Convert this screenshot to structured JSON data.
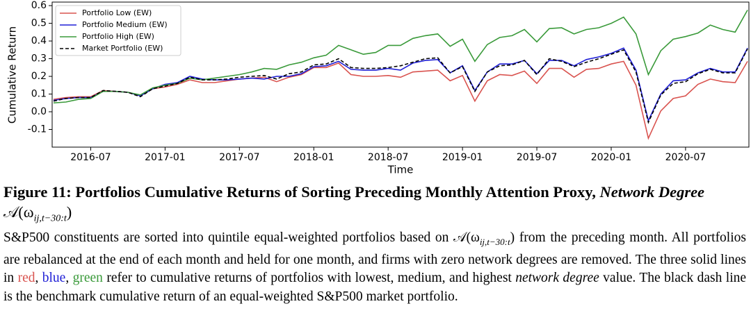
{
  "chart_data": {
    "type": "line",
    "ylabel": "Cumulative Return",
    "xlabel": "Time",
    "x": [
      "2016-04",
      "2016-05",
      "2016-06",
      "2016-07",
      "2016-08",
      "2016-09",
      "2016-10",
      "2016-11",
      "2016-12",
      "2017-01",
      "2017-02",
      "2017-03",
      "2017-04",
      "2017-05",
      "2017-06",
      "2017-07",
      "2017-08",
      "2017-09",
      "2017-10",
      "2017-11",
      "2017-12",
      "2018-01",
      "2018-02",
      "2018-03",
      "2018-04",
      "2018-05",
      "2018-06",
      "2018-07",
      "2018-08",
      "2018-09",
      "2018-10",
      "2018-11",
      "2018-12",
      "2019-01",
      "2019-02",
      "2019-03",
      "2019-04",
      "2019-05",
      "2019-06",
      "2019-07",
      "2019-08",
      "2019-09",
      "2019-10",
      "2019-11",
      "2019-12",
      "2020-01",
      "2020-02",
      "2020-03",
      "2020-04",
      "2020-05",
      "2020-06",
      "2020-07",
      "2020-08",
      "2020-09",
      "2020-10",
      "2020-11",
      "2020-12"
    ],
    "series": [
      {
        "name": "Portfolio Low (EW)",
        "color": "#d9534f",
        "dash": false,
        "values": [
          0.07,
          0.08,
          0.085,
          0.085,
          0.12,
          0.115,
          0.11,
          0.09,
          0.13,
          0.14,
          0.155,
          0.18,
          0.165,
          0.165,
          0.175,
          0.185,
          0.19,
          0.195,
          0.17,
          0.195,
          0.21,
          0.25,
          0.25,
          0.275,
          0.21,
          0.2,
          0.2,
          0.205,
          0.195,
          0.225,
          0.23,
          0.235,
          0.175,
          0.205,
          0.06,
          0.175,
          0.21,
          0.205,
          0.23,
          0.16,
          0.245,
          0.245,
          0.195,
          0.24,
          0.245,
          0.27,
          0.285,
          0.15,
          -0.15,
          0.005,
          0.075,
          0.09,
          0.155,
          0.185,
          0.17,
          0.165,
          0.285
        ]
      },
      {
        "name": "Portfolio Medium (EW)",
        "color": "#1f1fd6",
        "dash": false,
        "values": [
          0.065,
          0.075,
          0.08,
          0.08,
          0.115,
          0.115,
          0.11,
          0.09,
          0.13,
          0.155,
          0.165,
          0.2,
          0.185,
          0.18,
          0.18,
          0.185,
          0.19,
          0.185,
          0.2,
          0.2,
          0.215,
          0.255,
          0.26,
          0.285,
          0.24,
          0.235,
          0.235,
          0.245,
          0.235,
          0.275,
          0.29,
          0.295,
          0.22,
          0.26,
          0.12,
          0.225,
          0.27,
          0.27,
          0.29,
          0.215,
          0.29,
          0.29,
          0.26,
          0.295,
          0.31,
          0.33,
          0.36,
          0.235,
          -0.05,
          0.1,
          0.175,
          0.18,
          0.22,
          0.245,
          0.225,
          0.225,
          0.36
        ]
      },
      {
        "name": "Portfolio High (EW)",
        "color": "#3a9a3a",
        "dash": false,
        "values": [
          0.05,
          0.055,
          0.07,
          0.075,
          0.115,
          0.115,
          0.11,
          0.095,
          0.135,
          0.15,
          0.16,
          0.19,
          0.18,
          0.19,
          0.2,
          0.21,
          0.225,
          0.245,
          0.24,
          0.265,
          0.28,
          0.305,
          0.32,
          0.375,
          0.35,
          0.325,
          0.335,
          0.375,
          0.375,
          0.415,
          0.43,
          0.44,
          0.37,
          0.41,
          0.285,
          0.38,
          0.42,
          0.43,
          0.465,
          0.395,
          0.47,
          0.475,
          0.44,
          0.465,
          0.475,
          0.5,
          0.535,
          0.44,
          0.21,
          0.345,
          0.41,
          0.425,
          0.445,
          0.49,
          0.465,
          0.45,
          0.575
        ]
      },
      {
        "name": "Market Portfolio (EW)",
        "color": "#000000",
        "dash": true,
        "values": [
          0.06,
          0.075,
          0.08,
          0.08,
          0.12,
          0.115,
          0.11,
          0.085,
          0.13,
          0.145,
          0.16,
          0.195,
          0.18,
          0.18,
          0.185,
          0.195,
          0.2,
          0.205,
          0.185,
          0.215,
          0.225,
          0.265,
          0.27,
          0.3,
          0.25,
          0.245,
          0.245,
          0.25,
          0.26,
          0.28,
          0.3,
          0.305,
          0.22,
          0.255,
          0.115,
          0.225,
          0.26,
          0.265,
          0.29,
          0.21,
          0.3,
          0.285,
          0.255,
          0.28,
          0.3,
          0.325,
          0.35,
          0.225,
          -0.06,
          0.095,
          0.16,
          0.17,
          0.215,
          0.24,
          0.22,
          0.22,
          0.355
        ]
      }
    ],
    "xlim": [
      "2016-04",
      "2020-12"
    ],
    "xticks": [
      "2016-07",
      "2017-01",
      "2017-07",
      "2018-01",
      "2018-07",
      "2019-01",
      "2019-07",
      "2020-01",
      "2020-07"
    ],
    "ylim": [
      -0.2,
      0.62
    ],
    "yticks": [
      -0.1,
      {
        "value": 0,
        "label": "0.0"
      },
      0.1,
      0.2,
      0.3,
      0.4,
      0.5,
      0.6
    ],
    "grid": false,
    "legend": "upper left"
  },
  "caption": {
    "label": "Figure 11:",
    "title": "Portfolios Cumulative Returns of Sorting Preceding Monthly Attention Proxy,",
    "title_em": "Network Degree",
    "title_math": {
      "base": "𝒜(ω",
      "sub": "ij,t−30:t",
      "close": ")"
    },
    "body": [
      {
        "text": "S&P500 constituents are sorted into quintile equal-weighted portfolios based on "
      },
      {
        "math": {
          "base": "𝒜(ω",
          "sub": "ij,t−30:t",
          "close": ")"
        }
      },
      {
        "text": " from the pre­ceding month. All portfolios are rebalanced at the end of each month and held for one month, and firms with zero network degrees are removed. The three solid lines in "
      },
      {
        "text": "red",
        "color": "#d9534f"
      },
      {
        "text": ", "
      },
      {
        "text": "blue",
        "color": "#1f1fd6"
      },
      {
        "text": ", "
      },
      {
        "text": "green",
        "color": "#3a9a3a"
      },
      {
        "text": " refer to cumulative re­turns of portfolios with lowest, medium, and highest "
      },
      {
        "text": "network degree",
        "italic": true
      },
      {
        "text": " value. The black dash line is the benchmark cumulative return of an equal-weighted S&P500 market portfolio."
      }
    ]
  }
}
